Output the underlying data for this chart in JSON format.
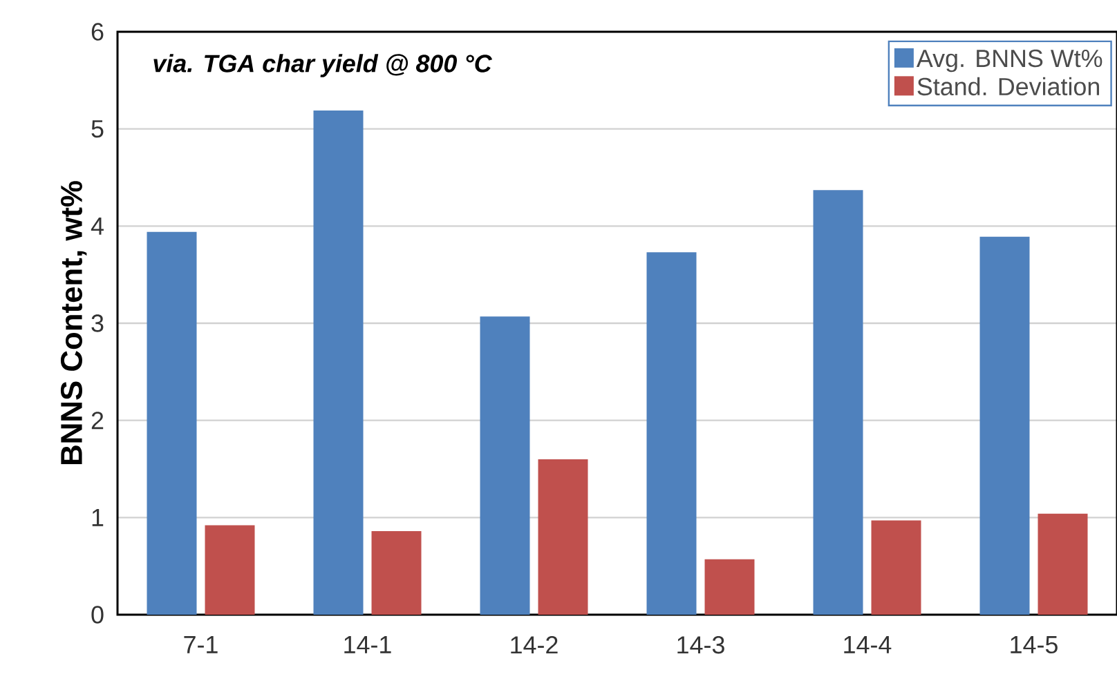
{
  "chart_data": {
    "type": "bar",
    "ylabel": "BNNS Content, wt%",
    "categories": [
      "7-1",
      "14-1",
      "14-2",
      "14-3",
      "14-4",
      "14-5"
    ],
    "series": [
      {
        "name": "Avg. BNNS Wt%",
        "color": "#4f81bd",
        "values": [
          3.94,
          5.19,
          3.07,
          3.73,
          4.37,
          3.89
        ]
      },
      {
        "name": "Stand. Deviation",
        "color": "#c0504d",
        "values": [
          0.92,
          0.86,
          1.6,
          0.57,
          0.97,
          1.04
        ]
      }
    ],
    "ylim": [
      0,
      6
    ],
    "yticks": [
      0,
      1,
      2,
      3,
      4,
      5,
      6
    ],
    "grid": "y",
    "legend": "top right",
    "annotations": [
      "via. TGA char yield @ 800 °C"
    ]
  }
}
